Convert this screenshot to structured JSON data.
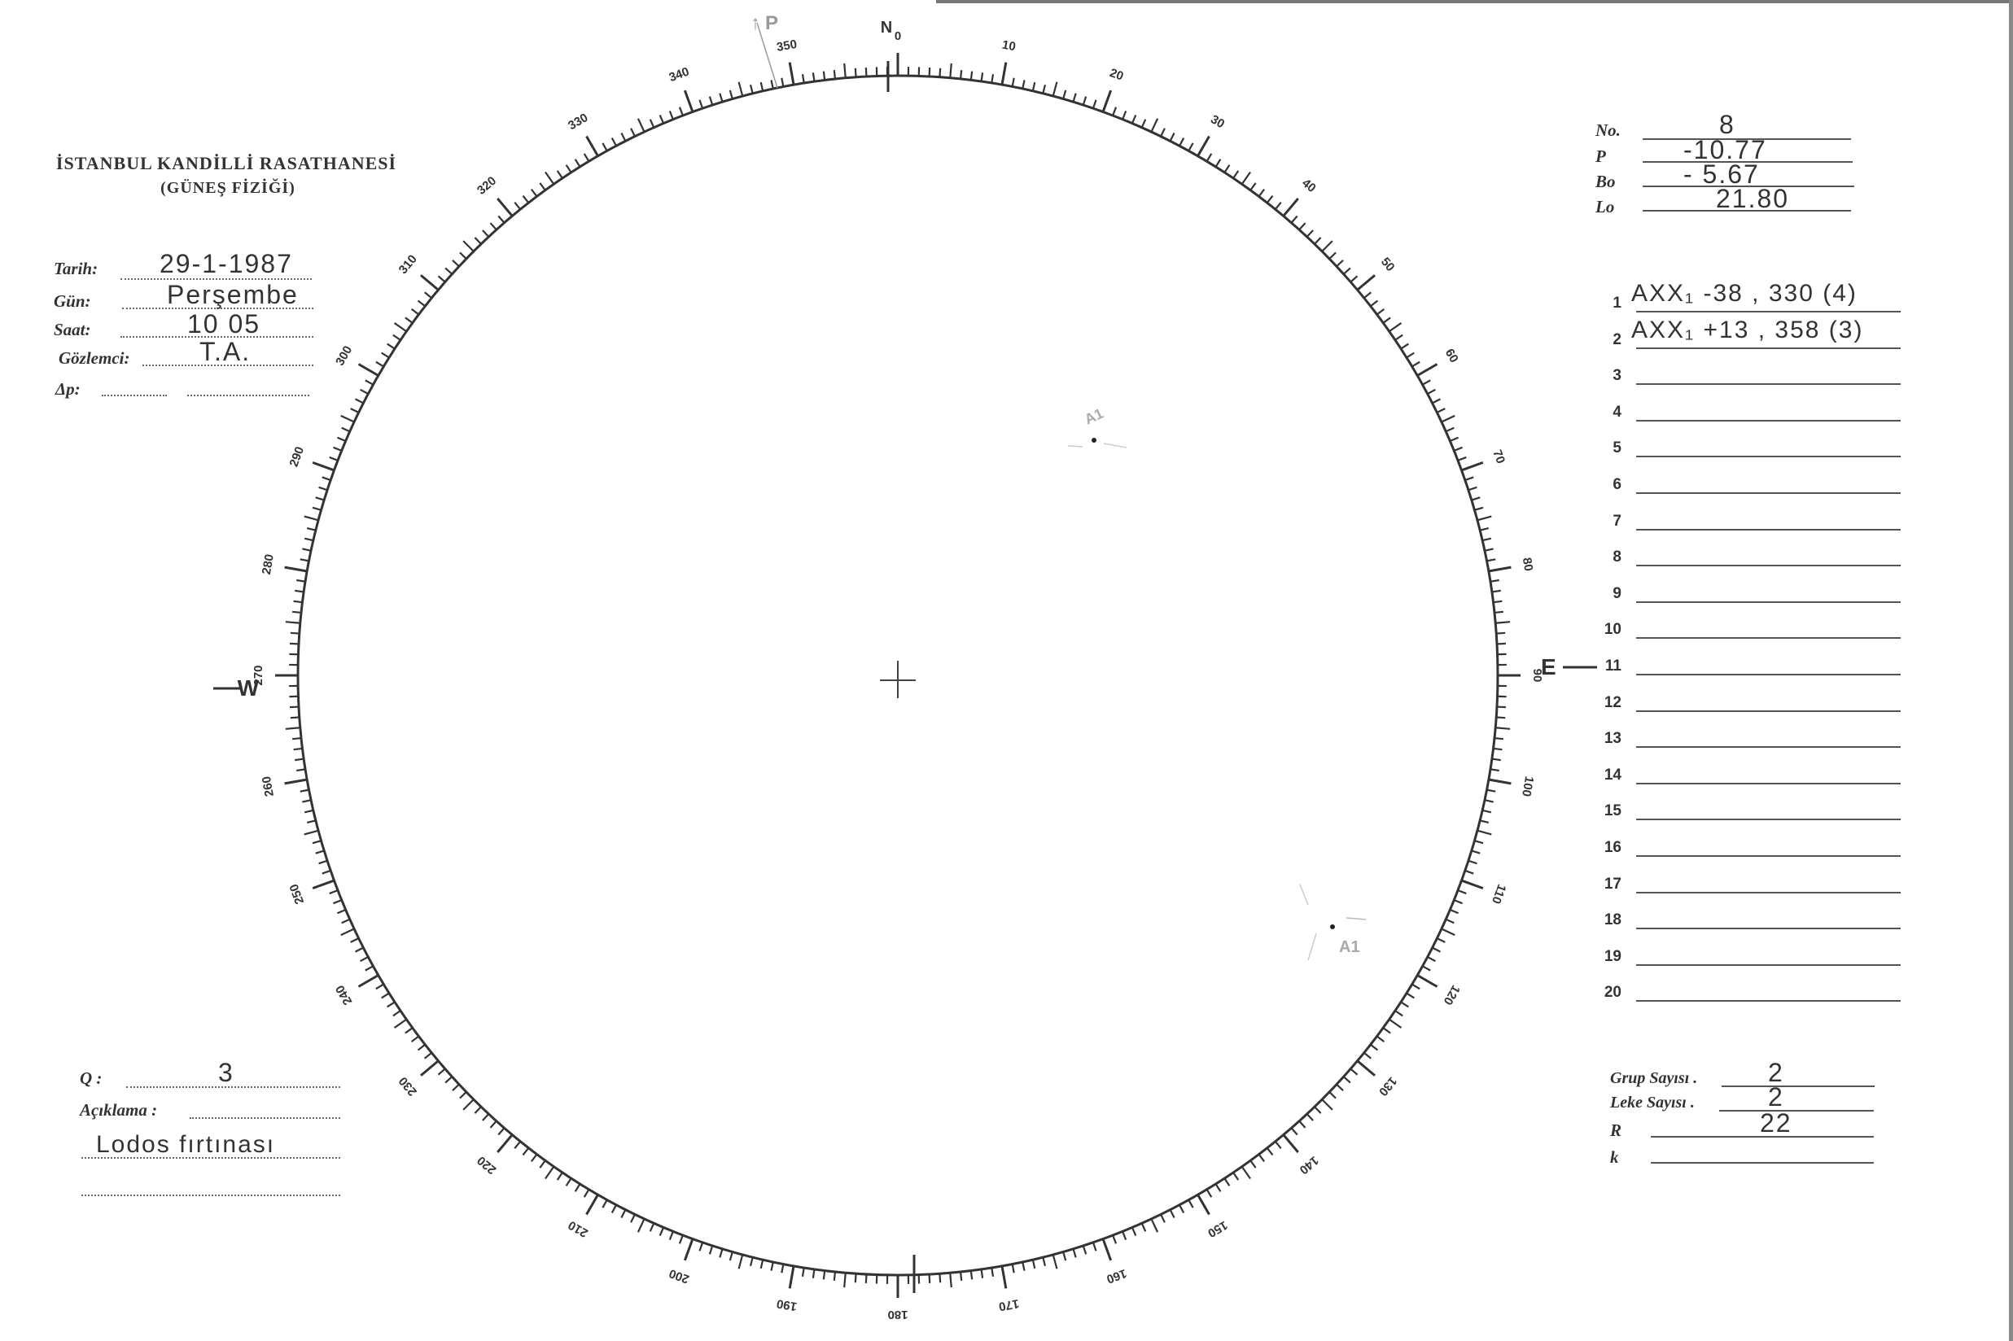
{
  "header": {
    "title": "İSTANBUL KANDİLLİ RASATHANESİ",
    "subtitle": "(GÜNEŞ FİZİĞİ)"
  },
  "observation": {
    "tarih": {
      "label": "Tarih:",
      "value": "29-1-1987"
    },
    "gun": {
      "label": "Gün:",
      "value": "Perşembe"
    },
    "saat": {
      "label": "Saat:",
      "value": "10 05"
    },
    "gozlemci": {
      "label": "Gözlemci:",
      "value": "T.A."
    },
    "delta_p": {
      "label": "Δp:",
      "value": ""
    }
  },
  "ephemeris": {
    "no": {
      "label": "No.",
      "value": "8"
    },
    "p": {
      "label": "P",
      "value": "-10.77"
    },
    "bo": {
      "label": "Bo",
      "value": "- 5.67"
    },
    "lo": {
      "label": "Lo",
      "value": "21.80"
    }
  },
  "groups": [
    {
      "n": "1",
      "text": "AXX₁ -38 , 330 (4)"
    },
    {
      "n": "2",
      "text": "AXX₁ +13 , 358 (3)"
    },
    {
      "n": "3",
      "text": ""
    },
    {
      "n": "4",
      "text": ""
    },
    {
      "n": "5",
      "text": ""
    },
    {
      "n": "6",
      "text": ""
    },
    {
      "n": "7",
      "text": ""
    },
    {
      "n": "8",
      "text": ""
    },
    {
      "n": "9",
      "text": ""
    },
    {
      "n": "10",
      "text": ""
    },
    {
      "n": "11",
      "text": ""
    },
    {
      "n": "12",
      "text": ""
    },
    {
      "n": "13",
      "text": ""
    },
    {
      "n": "14",
      "text": ""
    },
    {
      "n": "15",
      "text": ""
    },
    {
      "n": "16",
      "text": ""
    },
    {
      "n": "17",
      "text": ""
    },
    {
      "n": "18",
      "text": ""
    },
    {
      "n": "19",
      "text": ""
    },
    {
      "n": "20",
      "text": ""
    }
  ],
  "quality": {
    "q": {
      "label": "Q :",
      "value": "3"
    },
    "aciklama": {
      "label": "Açıklama :",
      "value": "Lodos fırtınası"
    }
  },
  "counts": {
    "grup": {
      "label": "Grup Sayısı .",
      "value": "2"
    },
    "leke": {
      "label": "Leke Sayısı .",
      "value": "2"
    },
    "r": {
      "label": "R",
      "value": "22"
    },
    "k": {
      "label": "k",
      "value": ""
    }
  },
  "disk": {
    "cardinals": {
      "n": "N",
      "e": "E",
      "w": "W"
    },
    "scale_labels": [
      "0",
      "10",
      "20",
      "30",
      "40",
      "50",
      "60",
      "70",
      "80",
      "90",
      "100",
      "110",
      "120",
      "130",
      "140",
      "150",
      "160",
      "170",
      "180",
      "190",
      "200",
      "210",
      "220",
      "230",
      "240",
      "250",
      "260",
      "270",
      "280",
      "290",
      "300",
      "310",
      "320",
      "330",
      "340",
      "350"
    ],
    "annotations": {
      "pole": "P",
      "spot1": "A1",
      "spot2": "A1"
    }
  }
}
